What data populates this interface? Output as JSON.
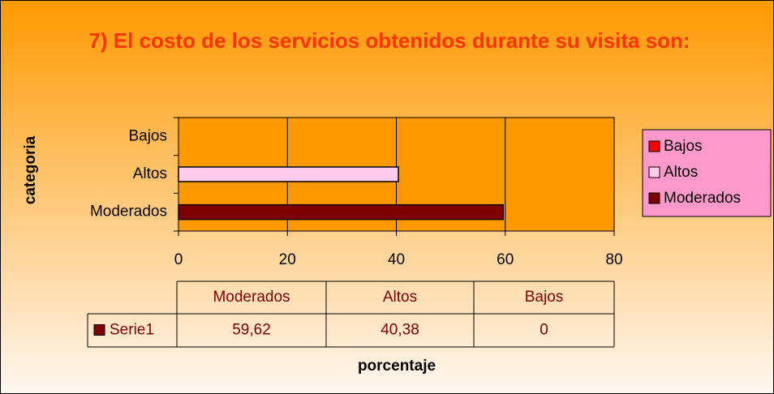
{
  "chart_data": {
    "type": "bar",
    "orientation": "horizontal",
    "title": "7) El costo de los servicios obtenidos durante su visita son:",
    "x_label": "porcentaje",
    "y_label": "categoria",
    "categories": [
      "Moderados",
      "Altos",
      "Bajos"
    ],
    "series": [
      {
        "name": "Serie1",
        "color": "#800000",
        "values": [
          59.62,
          40.38,
          0
        ],
        "value_labels": [
          "59,62",
          "40,38",
          "0"
        ],
        "point_colors": [
          "#800000",
          "#ffccee",
          "#ff0000"
        ]
      }
    ],
    "xlim": [
      0,
      80
    ],
    "xticks": [
      0,
      20,
      40,
      60,
      80
    ],
    "grid": true,
    "legend": "right",
    "data_table": true
  }
}
